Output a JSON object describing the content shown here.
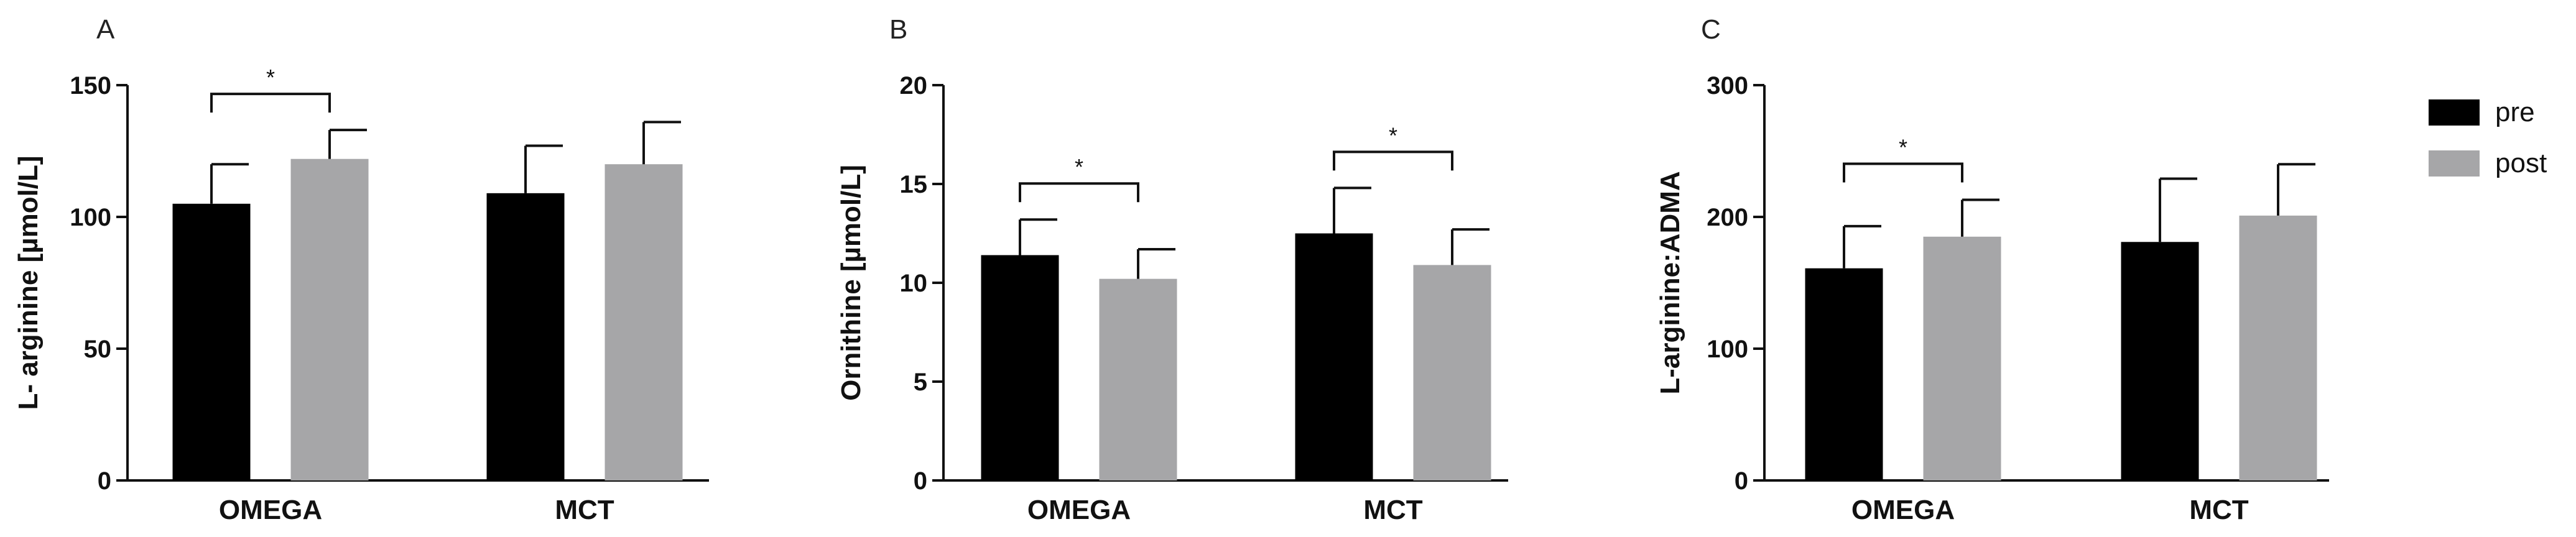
{
  "legend": [
    {
      "label": "pre",
      "color": "#000000"
    },
    {
      "label": "post",
      "color": "#a6a6a8"
    }
  ],
  "chart_data": [
    {
      "type": "bar",
      "panel": "A",
      "ylabel": "L- arginine [µmol/L]",
      "ylim": [
        0,
        150
      ],
      "yticks": [
        "0",
        "50",
        "100",
        "150"
      ],
      "categories": [
        "OMEGA",
        "MCT"
      ],
      "series": [
        {
          "name": "pre",
          "values": [
            105,
            109
          ],
          "errors": [
            15,
            18
          ]
        },
        {
          "name": "post",
          "values": [
            122,
            120
          ],
          "errors": [
            11,
            16
          ]
        }
      ],
      "significance": [
        {
          "group": 0,
          "label": "*"
        }
      ]
    },
    {
      "type": "bar",
      "panel": "B",
      "ylabel": "Ornithine [µmol/L]",
      "ylim": [
        0,
        20
      ],
      "yticks": [
        "0",
        "5",
        "10",
        "15",
        "20"
      ],
      "categories": [
        "OMEGA",
        "MCT"
      ],
      "series": [
        {
          "name": "pre",
          "values": [
            11.4,
            12.5
          ],
          "errors": [
            1.8,
            2.3
          ]
        },
        {
          "name": "post",
          "values": [
            10.2,
            10.9
          ],
          "errors": [
            1.5,
            1.8
          ]
        }
      ],
      "significance": [
        {
          "group": 0,
          "label": "*"
        },
        {
          "group": 1,
          "label": "*"
        }
      ]
    },
    {
      "type": "bar",
      "panel": "C",
      "ylabel": "L-arginine:ADMA",
      "ylim": [
        0,
        300
      ],
      "yticks": [
        "0",
        "100",
        "200",
        "300"
      ],
      "categories": [
        "OMEGA",
        "MCT"
      ],
      "series": [
        {
          "name": "pre",
          "values": [
            161,
            181
          ],
          "errors": [
            32,
            48
          ]
        },
        {
          "name": "post",
          "values": [
            185,
            201
          ],
          "errors": [
            28,
            39
          ]
        }
      ],
      "significance": [
        {
          "group": 0,
          "label": "*"
        }
      ]
    }
  ]
}
